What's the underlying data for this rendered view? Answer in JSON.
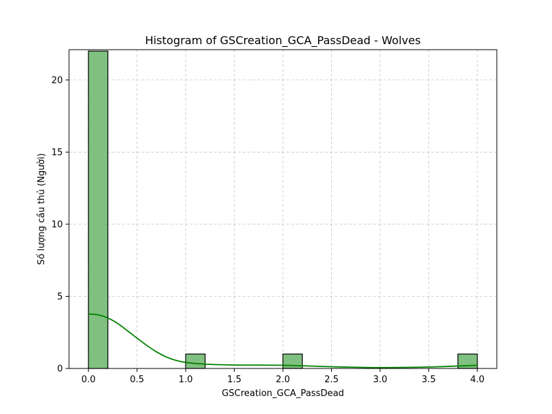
{
  "chart_data": {
    "type": "bar",
    "title": "Histogram of GSCreation_GCA_PassDead - Wolves",
    "xlabel": "GSCreation_GCA_PassDead",
    "ylabel": "Số lượng cầu thủ (Người)",
    "xlim": [
      -0.2,
      4.2
    ],
    "ylim": [
      0,
      22.1
    ],
    "xticks": [
      0.0,
      0.5,
      1.0,
      1.5,
      2.0,
      2.5,
      3.0,
      3.5,
      4.0
    ],
    "xtick_labels": [
      "0.0",
      "0.5",
      "1.0",
      "1.5",
      "2.0",
      "2.5",
      "3.0",
      "3.5",
      "4.0"
    ],
    "yticks": [
      0,
      5,
      10,
      15,
      20
    ],
    "ytick_labels": [
      "0",
      "5",
      "10",
      "15",
      "20"
    ],
    "grid": true,
    "bins": [
      {
        "x0": 0.0,
        "x1": 0.2,
        "count": 22
      },
      {
        "x0": 1.0,
        "x1": 1.2,
        "count": 1
      },
      {
        "x0": 2.0,
        "x1": 2.2,
        "count": 1
      },
      {
        "x0": 3.8,
        "x1": 4.0,
        "count": 1
      }
    ],
    "kde": {
      "x": [
        0.0,
        0.1,
        0.2,
        0.3,
        0.4,
        0.5,
        0.6,
        0.7,
        0.8,
        0.9,
        1.0,
        1.2,
        1.5,
        2.0,
        2.5,
        3.0,
        3.5,
        4.0
      ],
      "y": [
        3.78,
        3.72,
        3.5,
        3.12,
        2.62,
        2.1,
        1.6,
        1.15,
        0.8,
        0.56,
        0.42,
        0.3,
        0.24,
        0.22,
        0.12,
        0.06,
        0.1,
        0.22
      ]
    },
    "colors": {
      "bar_fill": "#80c080",
      "bar_edge": "#000000",
      "kde_line": "#008000"
    }
  }
}
